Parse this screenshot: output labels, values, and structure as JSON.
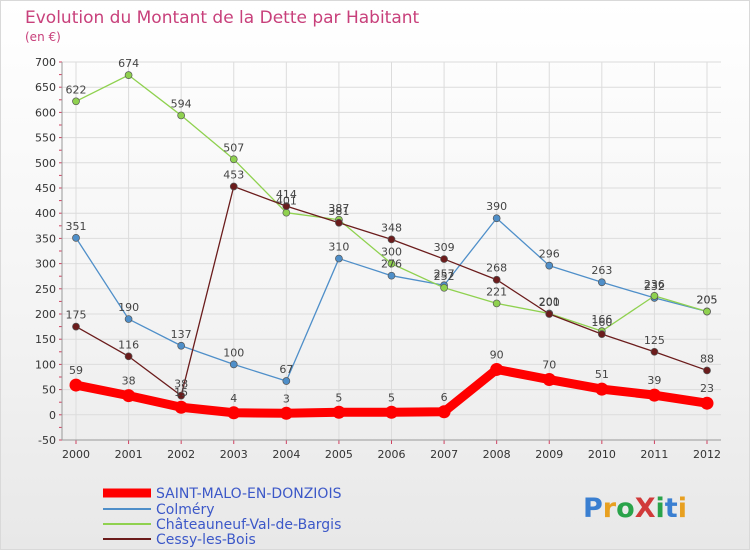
{
  "chart_data": {
    "type": "line",
    "title": "Evolution du Montant de la Dette par Habitant",
    "subtitle": "(en €)",
    "x": [
      "2000",
      "2001",
      "2002",
      "2003",
      "2004",
      "2005",
      "2006",
      "2007",
      "2008",
      "2009",
      "2010",
      "2011",
      "2012"
    ],
    "ylim": [
      -50,
      700
    ],
    "yticks": [
      -50,
      0,
      50,
      100,
      150,
      200,
      250,
      300,
      350,
      400,
      450,
      500,
      550,
      600,
      650,
      700
    ],
    "grid": true,
    "legend_position": "bottom-left",
    "series": [
      {
        "name": "SAINT-MALO-EN-DONZIOIS",
        "color": "#ff0000",
        "values": [
          59,
          38,
          15,
          4,
          3,
          5,
          5,
          6,
          90,
          70,
          51,
          39,
          23
        ],
        "labels": [
          "59",
          "38",
          "15",
          "4",
          "3",
          "5",
          "5",
          "6",
          "90",
          "70",
          "51",
          "39",
          "23"
        ]
      },
      {
        "name": "Colméry",
        "color": "#4f8fc9",
        "values": [
          351,
          190,
          137,
          100,
          67,
          310,
          276,
          257,
          390,
          296,
          263,
          232,
          205
        ],
        "labels": [
          "351",
          "190",
          "137",
          "100",
          "67",
          "310",
          "276",
          "257",
          "390",
          "296",
          "263",
          "232",
          "205"
        ]
      },
      {
        "name": "Châteauneuf-Val-de-Bargis",
        "color": "#8fd14f",
        "values": [
          622,
          674,
          594,
          507,
          401,
          387,
          300,
          252,
          221,
          201,
          166,
          236,
          205
        ],
        "labels": [
          "622",
          "674",
          "594",
          "507",
          "401",
          "387",
          "300",
          "252",
          "221",
          "201",
          "166",
          "236",
          "205"
        ]
      },
      {
        "name": "Cessy-les-Bois",
        "color": "#6b1c1c",
        "values": [
          175,
          116,
          38,
          453,
          414,
          381,
          348,
          309,
          268,
          200,
          160,
          125,
          88
        ],
        "labels": [
          "175",
          "116",
          "38",
          "453",
          "414",
          "381",
          "348",
          "309",
          "268",
          "200",
          "160",
          "125",
          "88"
        ]
      }
    ]
  },
  "logo": {
    "text": "ProXiti",
    "letter_colors": [
      "#3a7fd1",
      "#e8a020",
      "#2aa34a",
      "#d13a3a",
      "#2aa34a",
      "#3a7fd1",
      "#e8a020"
    ]
  }
}
